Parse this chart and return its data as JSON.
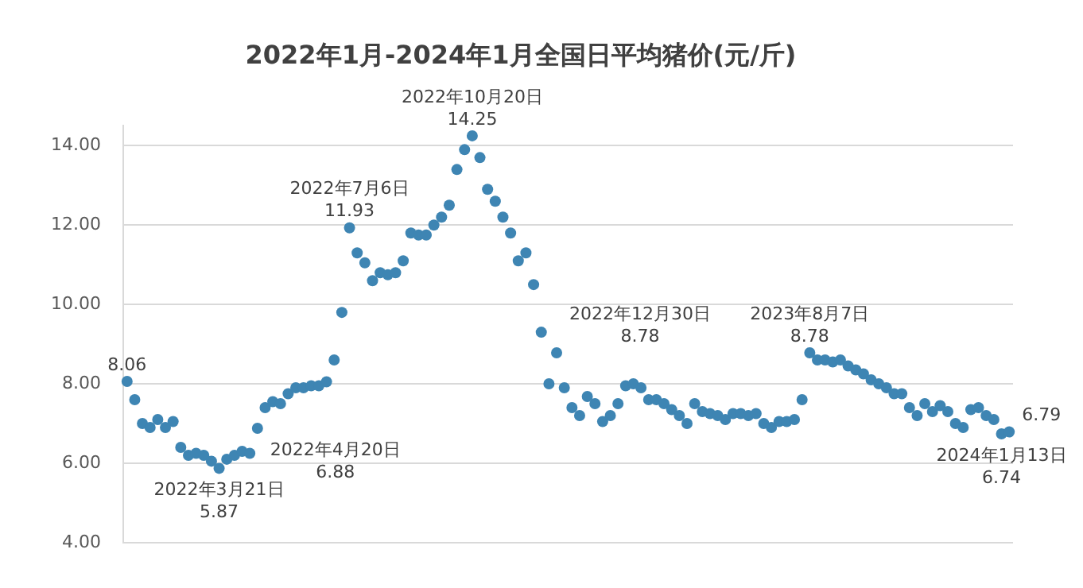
{
  "chart_data": {
    "type": "scatter",
    "title": "2022年1月-2024年1月全国日平均猪价(元/斤)",
    "categories": [
      null,
      null,
      null,
      null,
      null,
      null,
      null,
      null,
      null,
      null,
      null,
      null,
      null,
      null,
      null,
      null,
      null,
      null,
      null,
      null,
      null,
      null,
      null,
      null,
      null,
      null,
      null,
      null,
      null,
      null,
      null,
      null,
      null,
      null,
      null,
      null,
      null,
      null,
      null,
      null,
      null,
      null,
      null,
      null,
      null,
      null,
      null,
      null,
      null,
      null,
      null,
      null,
      null,
      null,
      null,
      null,
      null,
      null,
      null,
      null,
      null,
      null,
      null,
      null,
      null,
      null,
      null,
      null,
      null,
      null,
      null,
      null,
      null,
      null,
      null,
      null,
      null,
      null,
      null,
      null,
      null,
      null,
      null,
      null,
      null,
      null,
      null,
      null,
      null,
      null,
      null,
      null,
      null,
      null,
      null,
      null,
      null,
      null,
      null,
      null,
      null,
      null,
      null,
      null,
      null,
      null,
      null,
      null,
      null,
      null,
      null,
      null,
      null,
      null,
      null,
      null
    ],
    "color": "#3e85b3",
    "marker": "circle",
    "grid": "y",
    "values": [
      8.06,
      7.6,
      7.0,
      6.9,
      7.1,
      6.9,
      7.05,
      6.4,
      6.2,
      6.25,
      6.2,
      6.05,
      5.87,
      6.1,
      6.2,
      6.3,
      6.25,
      6.88,
      7.4,
      7.55,
      7.5,
      7.75,
      7.9,
      7.9,
      7.95,
      7.95,
      8.05,
      8.6,
      9.8,
      11.93,
      11.3,
      11.05,
      10.6,
      10.8,
      10.75,
      10.8,
      11.1,
      11.8,
      11.75,
      11.75,
      12.0,
      12.2,
      12.5,
      13.4,
      13.9,
      14.25,
      13.7,
      12.9,
      12.6,
      12.2,
      11.8,
      11.1,
      11.3,
      10.5,
      9.3,
      8.0,
      8.78,
      7.9,
      7.4,
      7.2,
      7.68,
      7.5,
      7.05,
      7.2,
      7.5,
      7.95,
      8.0,
      7.9,
      7.6,
      7.6,
      7.5,
      7.35,
      7.2,
      7.0,
      7.5,
      7.3,
      7.25,
      7.2,
      7.1,
      7.25,
      7.25,
      7.2,
      7.25,
      7.0,
      6.9,
      7.05,
      7.05,
      7.1,
      7.6,
      8.78,
      8.6,
      8.6,
      8.55,
      8.6,
      8.45,
      8.35,
      8.25,
      8.1,
      8.0,
      7.9,
      7.75,
      7.75,
      7.4,
      7.2,
      7.5,
      7.3,
      7.45,
      7.3,
      7.0,
      6.9,
      7.35,
      7.4,
      7.2,
      7.1,
      6.74,
      6.79
    ],
    "value_labels": [
      "8.06",
      null,
      null,
      null,
      null,
      null,
      null,
      null,
      null,
      null,
      null,
      null,
      "2022年3月21日\n5.87",
      null,
      null,
      null,
      null,
      "2022年4月20日\n6.88",
      null,
      null,
      null,
      null,
      null,
      null,
      null,
      null,
      null,
      null,
      null,
      "2022年7月6日\n11.93",
      null,
      null,
      null,
      null,
      null,
      null,
      null,
      null,
      null,
      null,
      null,
      null,
      null,
      null,
      null,
      "2022年10月20日\n14.25",
      null,
      null,
      null,
      null,
      null,
      null,
      null,
      null,
      null,
      null,
      "2022年12月30日\n8.78",
      null,
      null,
      null,
      null,
      null,
      null,
      null,
      null,
      null,
      null,
      null,
      null,
      null,
      null,
      null,
      null,
      null,
      null,
      null,
      null,
      null,
      null,
      null,
      null,
      null,
      null,
      null,
      null,
      null,
      null,
      null,
      null,
      "2023年8月7日\n8.78",
      null,
      null,
      null,
      null,
      null,
      null,
      null,
      null,
      null,
      null,
      null,
      null,
      null,
      null,
      null,
      null,
      null,
      null,
      null,
      null,
      null,
      null,
      null,
      null,
      "2024年1月13日\n6.74",
      "6.79"
    ],
    "ylim": [
      4,
      14.5
    ],
    "yticks": [
      {
        "value": 4,
        "label": "4.00"
      },
      {
        "value": 6,
        "label": "6.00"
      },
      {
        "value": 8,
        "label": "8.00"
      },
      {
        "value": 10,
        "label": "10.00"
      },
      {
        "value": 12,
        "label": "12.00"
      },
      {
        "value": 14,
        "label": "14.00"
      }
    ]
  }
}
